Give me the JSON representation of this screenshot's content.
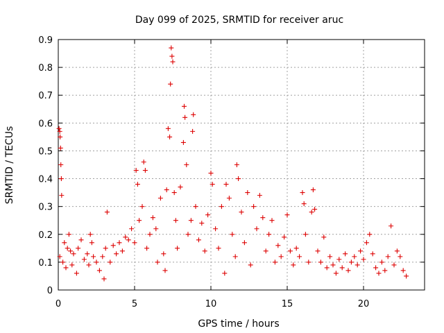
{
  "chart_data": {
    "type": "scatter",
    "title": "Day 099 of 2025, SRMTID for receiver aruc",
    "xlabel": "GPS time / hours",
    "ylabel": "SRMTID / TECUs",
    "xlim": [
      0,
      24
    ],
    "ylim": [
      0,
      0.9
    ],
    "xticks": [
      0,
      5,
      10,
      15,
      20
    ],
    "xtick_labels": [
      "0",
      "5",
      "10",
      "15",
      "20"
    ],
    "yticks": [
      0,
      0.1,
      0.2,
      0.3,
      0.4,
      0.5,
      0.6,
      0.7,
      0.8,
      0.9
    ],
    "ytick_labels": [
      "0",
      "0.1",
      "0.2",
      "0.3",
      "0.4",
      "0.5",
      "0.6",
      "0.7",
      "0.8",
      "0.9"
    ],
    "grid": true,
    "marker": "+",
    "colors": {
      "points": "#dd0000",
      "grid": "#a0a0a0",
      "axis": "#000000"
    },
    "series": [
      {
        "name": "SRMTID",
        "points": [
          [
            0.05,
            0.58
          ],
          [
            0.1,
            0.57
          ],
          [
            0.12,
            0.55
          ],
          [
            0.15,
            0.51
          ],
          [
            0.17,
            0.45
          ],
          [
            0.2,
            0.4
          ],
          [
            0.22,
            0.34
          ],
          [
            0.1,
            0.12
          ],
          [
            0.3,
            0.1
          ],
          [
            0.4,
            0.17
          ],
          [
            0.5,
            0.08
          ],
          [
            0.6,
            0.15
          ],
          [
            0.7,
            0.2
          ],
          [
            0.8,
            0.14
          ],
          [
            0.9,
            0.09
          ],
          [
            1.0,
            0.13
          ],
          [
            1.2,
            0.06
          ],
          [
            1.3,
            0.15
          ],
          [
            1.5,
            0.18
          ],
          [
            1.7,
            0.11
          ],
          [
            1.9,
            0.13
          ],
          [
            2.0,
            0.09
          ],
          [
            2.1,
            0.2
          ],
          [
            2.2,
            0.17
          ],
          [
            2.3,
            0.12
          ],
          [
            2.5,
            0.1
          ],
          [
            2.7,
            0.07
          ],
          [
            2.9,
            0.12
          ],
          [
            3.0,
            0.04
          ],
          [
            3.1,
            0.15
          ],
          [
            3.2,
            0.28
          ],
          [
            3.4,
            0.1
          ],
          [
            3.6,
            0.16
          ],
          [
            3.8,
            0.13
          ],
          [
            4.0,
            0.17
          ],
          [
            4.2,
            0.14
          ],
          [
            4.4,
            0.19
          ],
          [
            4.6,
            0.18
          ],
          [
            4.8,
            0.22
          ],
          [
            5.0,
            0.17
          ],
          [
            5.1,
            0.43
          ],
          [
            5.2,
            0.38
          ],
          [
            5.3,
            0.25
          ],
          [
            5.5,
            0.3
          ],
          [
            5.6,
            0.46
          ],
          [
            5.7,
            0.43
          ],
          [
            5.8,
            0.15
          ],
          [
            6.0,
            0.2
          ],
          [
            6.2,
            0.26
          ],
          [
            6.4,
            0.22
          ],
          [
            6.5,
            0.1
          ],
          [
            6.7,
            0.33
          ],
          [
            6.9,
            0.13
          ],
          [
            7.0,
            0.07
          ],
          [
            7.1,
            0.36
          ],
          [
            7.2,
            0.58
          ],
          [
            7.3,
            0.55
          ],
          [
            7.35,
            0.74
          ],
          [
            7.4,
            0.87
          ],
          [
            7.45,
            0.84
          ],
          [
            7.5,
            0.82
          ],
          [
            7.6,
            0.35
          ],
          [
            7.7,
            0.25
          ],
          [
            7.8,
            0.15
          ],
          [
            8.0,
            0.37
          ],
          [
            8.2,
            0.53
          ],
          [
            8.25,
            0.66
          ],
          [
            8.3,
            0.62
          ],
          [
            8.4,
            0.45
          ],
          [
            8.5,
            0.2
          ],
          [
            8.7,
            0.25
          ],
          [
            8.8,
            0.57
          ],
          [
            8.85,
            0.63
          ],
          [
            9.0,
            0.3
          ],
          [
            9.2,
            0.18
          ],
          [
            9.4,
            0.24
          ],
          [
            9.6,
            0.14
          ],
          [
            9.8,
            0.27
          ],
          [
            10.0,
            0.42
          ],
          [
            10.1,
            0.38
          ],
          [
            10.3,
            0.22
          ],
          [
            10.5,
            0.15
          ],
          [
            10.7,
            0.3
          ],
          [
            10.9,
            0.06
          ],
          [
            11.0,
            0.38
          ],
          [
            11.2,
            0.33
          ],
          [
            11.4,
            0.2
          ],
          [
            11.6,
            0.12
          ],
          [
            11.7,
            0.45
          ],
          [
            11.8,
            0.4
          ],
          [
            12.0,
            0.28
          ],
          [
            12.2,
            0.17
          ],
          [
            12.4,
            0.35
          ],
          [
            12.6,
            0.09
          ],
          [
            12.8,
            0.3
          ],
          [
            13.0,
            0.22
          ],
          [
            13.2,
            0.34
          ],
          [
            13.4,
            0.26
          ],
          [
            13.6,
            0.14
          ],
          [
            13.8,
            0.2
          ],
          [
            14.0,
            0.25
          ],
          [
            14.2,
            0.1
          ],
          [
            14.4,
            0.16
          ],
          [
            14.6,
            0.12
          ],
          [
            14.8,
            0.19
          ],
          [
            15.0,
            0.27
          ],
          [
            15.2,
            0.14
          ],
          [
            15.4,
            0.09
          ],
          [
            15.6,
            0.15
          ],
          [
            15.8,
            0.12
          ],
          [
            16.0,
            0.35
          ],
          [
            16.1,
            0.31
          ],
          [
            16.2,
            0.2
          ],
          [
            16.4,
            0.1
          ],
          [
            16.6,
            0.28
          ],
          [
            16.7,
            0.36
          ],
          [
            16.8,
            0.29
          ],
          [
            17.0,
            0.14
          ],
          [
            17.2,
            0.1
          ],
          [
            17.4,
            0.19
          ],
          [
            17.6,
            0.08
          ],
          [
            17.8,
            0.12
          ],
          [
            18.0,
            0.09
          ],
          [
            18.2,
            0.06
          ],
          [
            18.4,
            0.11
          ],
          [
            18.6,
            0.08
          ],
          [
            18.8,
            0.13
          ],
          [
            19.0,
            0.07
          ],
          [
            19.2,
            0.1
          ],
          [
            19.4,
            0.12
          ],
          [
            19.6,
            0.09
          ],
          [
            19.8,
            0.14
          ],
          [
            20.0,
            0.11
          ],
          [
            20.2,
            0.17
          ],
          [
            20.4,
            0.2
          ],
          [
            20.6,
            0.13
          ],
          [
            20.8,
            0.08
          ],
          [
            21.0,
            0.06
          ],
          [
            21.2,
            0.1
          ],
          [
            21.4,
            0.07
          ],
          [
            21.6,
            0.12
          ],
          [
            21.8,
            0.23
          ],
          [
            22.0,
            0.09
          ],
          [
            22.2,
            0.14
          ],
          [
            22.4,
            0.12
          ],
          [
            22.6,
            0.07
          ],
          [
            22.8,
            0.05
          ]
        ]
      }
    ]
  }
}
